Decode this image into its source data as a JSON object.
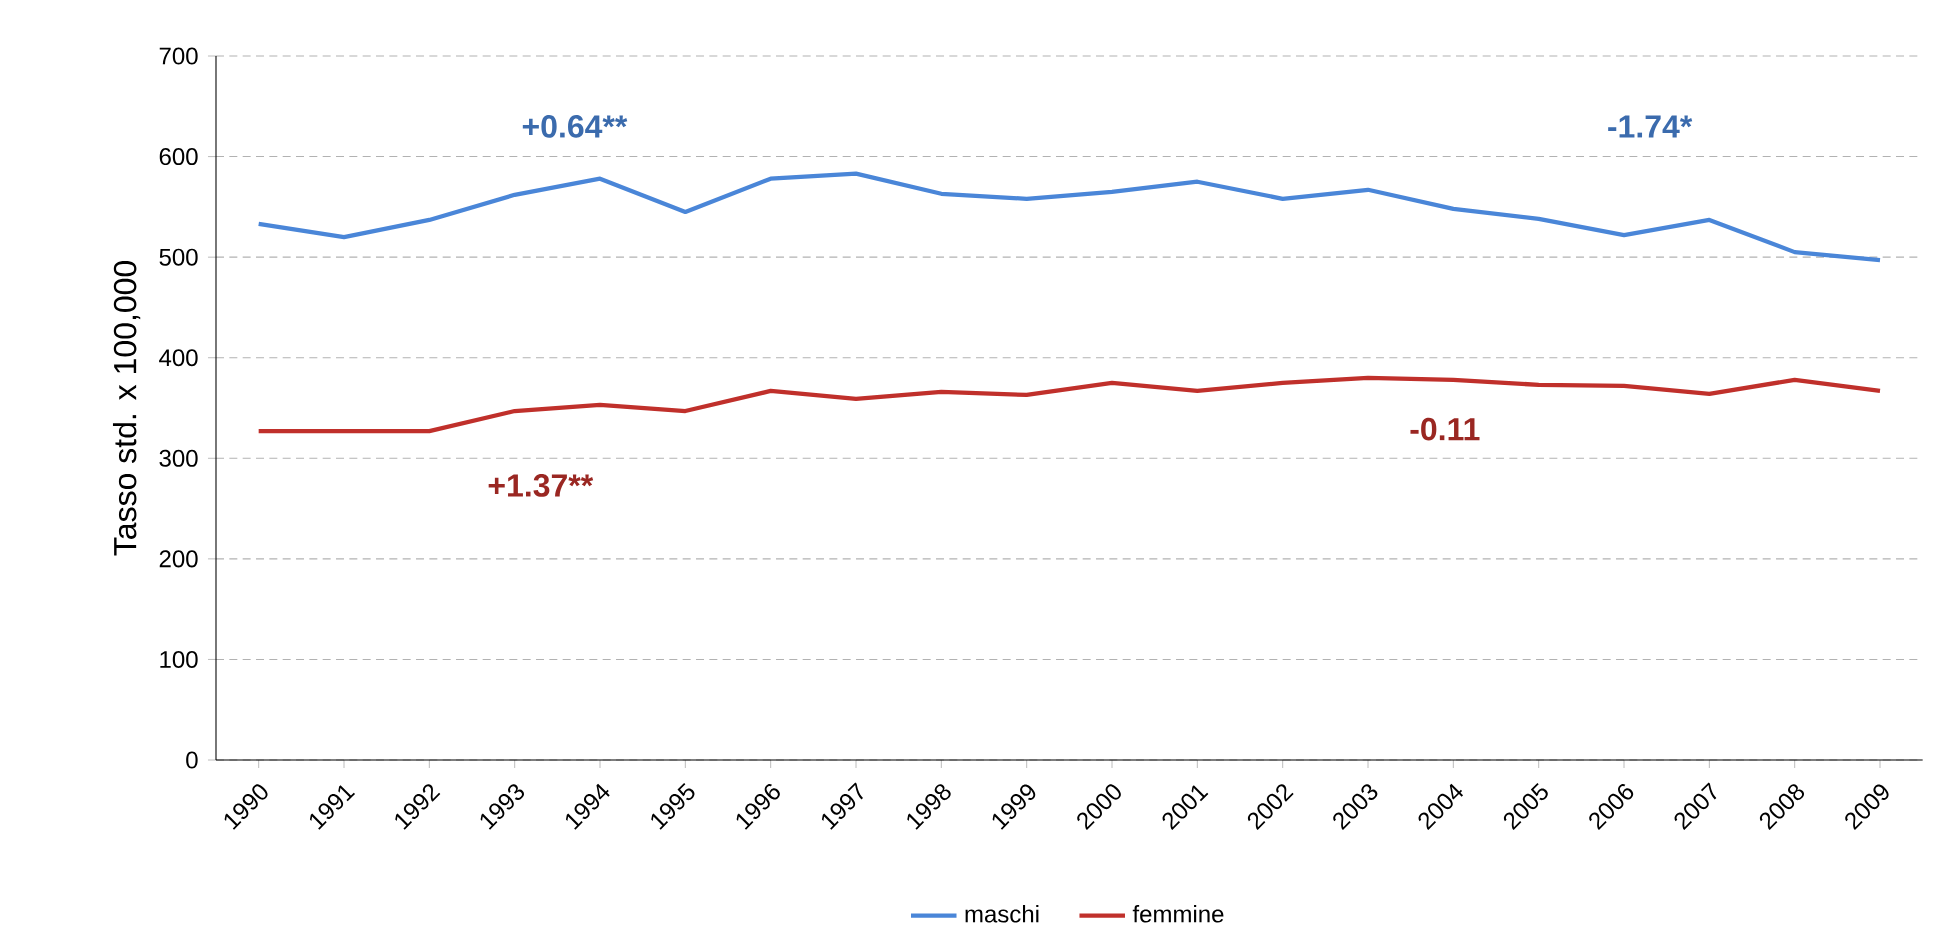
{
  "chart_data": {
    "type": "line",
    "ylabel": "Tasso std. x 100,000",
    "categories": [
      "1990",
      "1991",
      "1992",
      "1993",
      "1994",
      "1995",
      "1996",
      "1997",
      "1998",
      "1999",
      "2000",
      "2001",
      "2002",
      "2003",
      "2004",
      "2005",
      "2006",
      "2007",
      "2008",
      "2009"
    ],
    "series": [
      {
        "name": "maschi",
        "color": "#4a86d8",
        "values": [
          533,
          520,
          537,
          562,
          578,
          545,
          578,
          583,
          563,
          558,
          565,
          575,
          558,
          567,
          548,
          538,
          522,
          537,
          505,
          497
        ]
      },
      {
        "name": "femmine",
        "color": "#c0302b",
        "values": [
          327,
          327,
          327,
          347,
          353,
          347,
          367,
          359,
          366,
          363,
          375,
          367,
          375,
          380,
          378,
          373,
          372,
          364,
          378,
          367
        ]
      }
    ],
    "annotations": [
      "+0.64**",
      "-1.74*",
      "+1.37**",
      "-0.11"
    ],
    "ylim": [
      0,
      700
    ],
    "yticks": [
      0,
      100,
      200,
      300,
      400,
      500,
      600,
      700
    ],
    "grid": "y",
    "legend": "bottom",
    "marker": "none",
    "line_style": "solid"
  }
}
